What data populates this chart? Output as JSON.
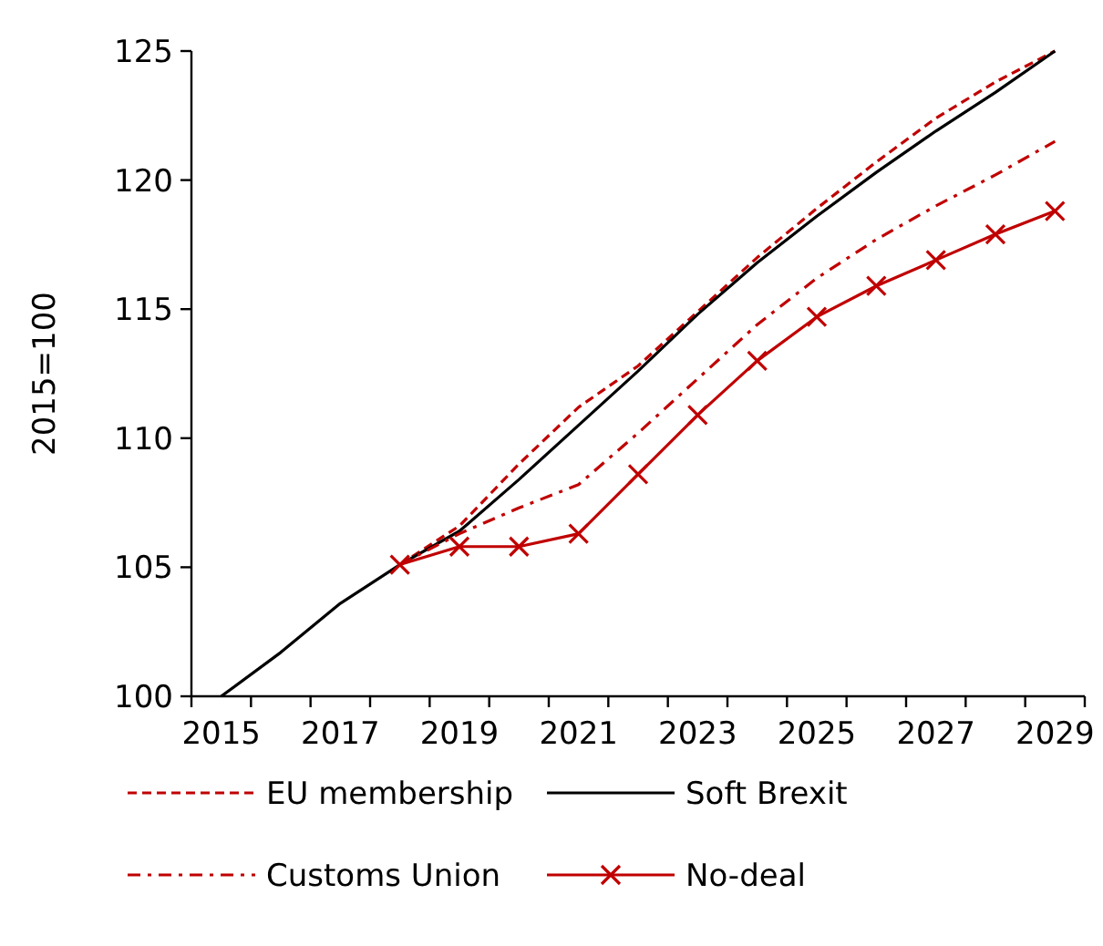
{
  "chart_data": {
    "type": "line",
    "ylabel": "2015=100",
    "categories": [
      "2015",
      null,
      "2017",
      null,
      "2019",
      null,
      "2021",
      null,
      "2023",
      null,
      "2025",
      null,
      "2027",
      null,
      "2029"
    ],
    "ylim": [
      100,
      125
    ],
    "yticks": [
      100,
      105,
      110,
      115,
      120,
      125
    ],
    "grid": false,
    "legend": "bottom",
    "series": [
      {
        "name": "EU membership",
        "color": "#c00000",
        "line_style": "dashed",
        "marker": "none",
        "values": [
          null,
          null,
          null,
          105.1,
          106.6,
          109.0,
          111.2,
          112.8,
          114.9,
          117.0,
          118.9,
          120.7,
          122.4,
          123.8,
          125.0
        ]
      },
      {
        "name": "Soft Brexit",
        "color": "#000000",
        "line_style": "solid",
        "marker": "none",
        "values": [
          100,
          101.7,
          103.6,
          105.1,
          106.4,
          108.4,
          110.5,
          112.6,
          114.8,
          116.8,
          118.6,
          120.3,
          121.9,
          123.4,
          125.0
        ]
      },
      {
        "name": "Customs Union",
        "color": "#c00000",
        "line_style": "dashdot",
        "marker": "none",
        "values": [
          null,
          null,
          null,
          105.1,
          106.3,
          107.3,
          108.2,
          110.2,
          112.3,
          114.4,
          116.2,
          117.7,
          119.0,
          120.2,
          121.5
        ]
      },
      {
        "name": "No-deal",
        "color": "#c00000",
        "line_style": "solid",
        "marker": "cross",
        "values": [
          null,
          null,
          null,
          105.1,
          105.8,
          105.8,
          106.3,
          108.6,
          110.9,
          113.0,
          114.7,
          115.9,
          116.9,
          117.9,
          118.8
        ]
      }
    ]
  }
}
